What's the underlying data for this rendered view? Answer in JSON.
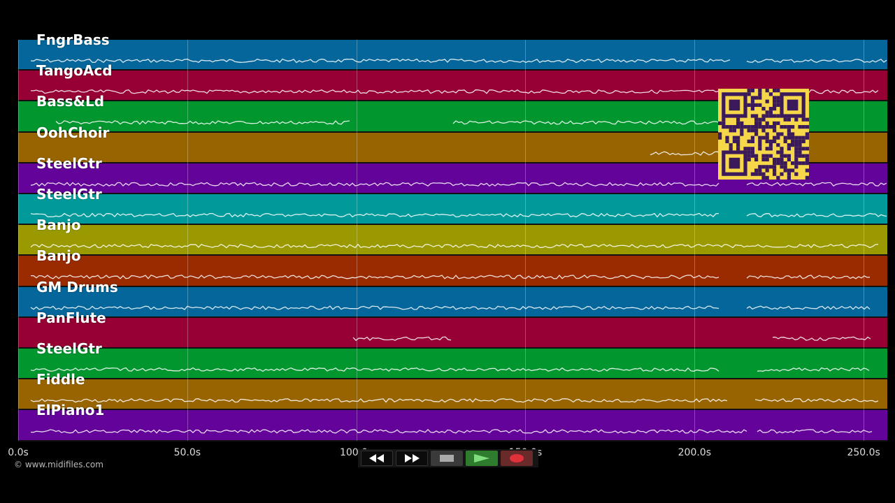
{
  "tracks": [
    {
      "label": "FngrBass",
      "color": "#04669a"
    },
    {
      "label": "TangoAcd",
      "color": "#960034"
    },
    {
      "label": "Bass&Ld",
      "color": "#02962f"
    },
    {
      "label": "OohChoir",
      "color": "#986400"
    },
    {
      "label": "SteelGtr",
      "color": "#630399"
    },
    {
      "label": "SteelGtr",
      "color": "#009a9a"
    },
    {
      "label": "Banjo",
      "color": "#9a9a00"
    },
    {
      "label": "Banjo",
      "color": "#9a2a00"
    },
    {
      "label": "GM Drums",
      "color": "#04669a"
    },
    {
      "label": "PanFlute",
      "color": "#960034"
    },
    {
      "label": "SteelGtr",
      "color": "#02962f"
    },
    {
      "label": "Fiddle",
      "color": "#986400"
    },
    {
      "label": "ElPiano1",
      "color": "#630399"
    }
  ],
  "axis": {
    "max_seconds": 257,
    "ticks": [
      "0.0s",
      "50.0s",
      "100.0s",
      "150.0s",
      "200.0s",
      "250.0s"
    ],
    "tick_values": [
      0,
      50,
      100,
      150,
      200,
      250
    ]
  },
  "copyright": "© www.midifiles.com",
  "transport": {
    "rewind_icon": "rewind-icon",
    "fast_forward_icon": "fast-forward-icon",
    "stop_icon": "stop-icon",
    "play_icon": "play-icon",
    "record_icon": "record-icon"
  },
  "colors": {
    "background": "#000000",
    "qr_bg": "#f6d74a",
    "qr_fg": "#3a1a5a"
  }
}
